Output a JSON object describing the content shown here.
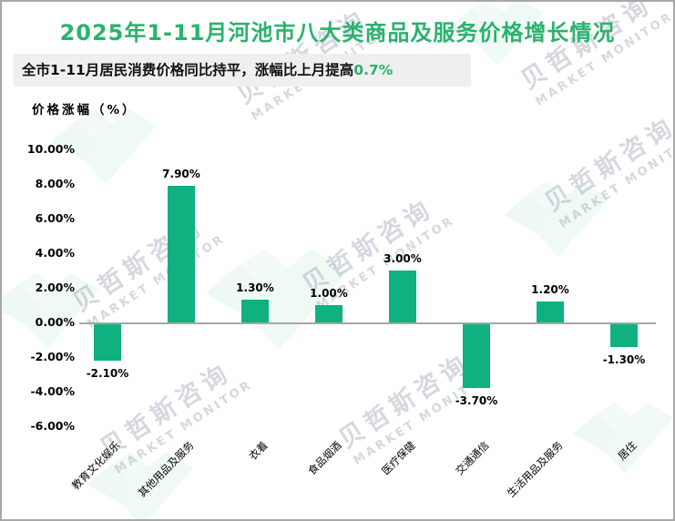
{
  "page": {
    "title": "2025年1-11月河池市八大类商品及服务价格增长情况",
    "subtitle_prefix": "全市1-11月居民消费价格同比持平，涨幅比上月提高",
    "subtitle_highlight": "0.7%",
    "axis_unit_label": "价格涨幅（%）"
  },
  "watermark": {
    "cn": "贝哲斯咨询",
    "en": "MARKET MONITOR"
  },
  "colors": {
    "bar": "#0fb181",
    "title_green": "#2bb26e",
    "subtitle_bg": "#efefef",
    "axis_line": "#a6a6a6",
    "frame_border": "#a8a8a8",
    "text": "#000000",
    "watermark_text": "#d6d8e0"
  },
  "chart_data": {
    "type": "bar",
    "title": "2025年1-11月河池市八大类商品及服务价格增长情况",
    "subtitle": "全市1-11月居民消费价格同比持平，涨幅比上月提高0.7%",
    "categories": [
      "教育文化娱乐",
      "其他用品及服务",
      "衣着",
      "食品烟酒",
      "医疗保健",
      "交通通信",
      "生活用品及服务",
      "居住"
    ],
    "values": [
      -2.1,
      7.9,
      1.3,
      1.0,
      3.0,
      -3.7,
      1.2,
      -1.3
    ],
    "value_labels": [
      "-2.10%",
      "7.90%",
      "1.30%",
      "1.00%",
      "3.00%",
      "-3.70%",
      "1.20%",
      "-1.30%"
    ],
    "xlabel": "",
    "ylabel": "价格涨幅（%）",
    "ylim": [
      -6,
      10
    ],
    "ytick_step": 2,
    "ytick_labels": [
      "10.00%",
      "8.00%",
      "6.00%",
      "4.00%",
      "2.00%",
      "0.00%",
      "-2.00%",
      "-4.00%",
      "-6.00%"
    ],
    "grid": false,
    "legend": false,
    "bar_color": "#0fb181"
  }
}
